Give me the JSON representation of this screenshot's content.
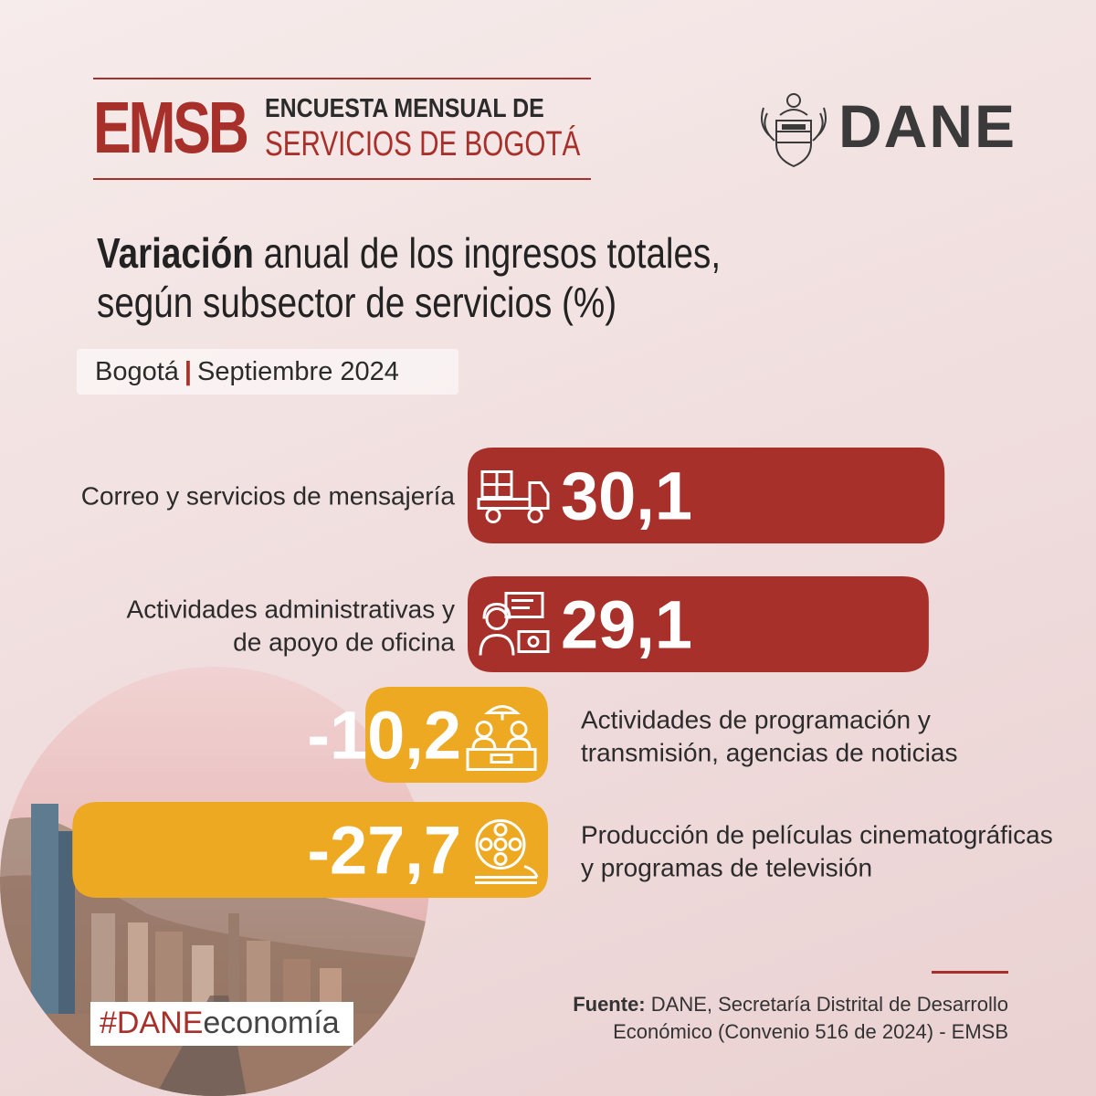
{
  "header": {
    "acronym": "EMSB",
    "survey_line1": "ENCUESTA MENSUAL DE",
    "survey_line2": "SERVICIOS DE BOGOTÁ",
    "org_name": "DANE"
  },
  "title": {
    "bold": "Variación",
    "rest": " anual de los ingresos totales,",
    "line2": "según subsector de servicios (%)"
  },
  "subtitle": {
    "place": "Bogotá",
    "separator": "|",
    "period": "Septiembre 2024"
  },
  "colors": {
    "positive": "#a8302a",
    "negative": "#eca921",
    "accent": "#a8302a",
    "text": "#2b2b2b"
  },
  "chart_data": {
    "type": "bar",
    "orientation": "horizontal",
    "unit": "%",
    "categories": [
      "Correo y servicios de mensajería",
      "Actividades administrativas y de apoyo de oficina",
      "Actividades de programación y transmisión, agencias de noticias",
      "Producción de películas cinematográficas y programas de televisión"
    ],
    "category_lines": [
      [
        "Correo y servicios de mensajería"
      ],
      [
        "Actividades administrativas y",
        "de apoyo de oficina"
      ],
      [
        "Actividades de programación y",
        "transmisión, agencias de noticias"
      ],
      [
        "Producción de películas cinematográficas",
        "y programas de televisión"
      ]
    ],
    "values": [
      30.1,
      29.1,
      -10.2,
      -27.7
    ],
    "value_labels": [
      "30,1",
      "29,1",
      "-10,2",
      "-27,7"
    ],
    "icons": [
      "delivery-truck-icon",
      "office-support-icon",
      "news-broadcast-icon",
      "film-reel-icon"
    ]
  },
  "footer": {
    "hashtag_prefix": "#DANE",
    "hashtag_suffix": "economía",
    "source_label": "Fuente:",
    "source_line1": " DANE, Secretaría Distrital de Desarrollo",
    "source_line2": "Económico (Convenio 516 de 2024) - EMSB"
  }
}
